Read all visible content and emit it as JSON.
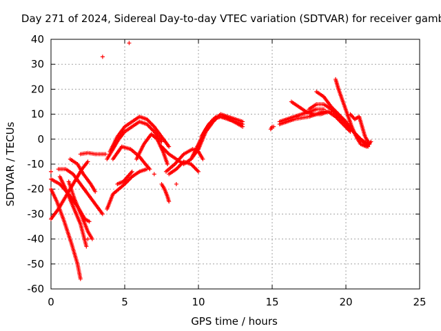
{
  "chart_data": {
    "type": "scatter",
    "title": "Day 271 of 2024, Sidereal Day-to-day VTEC variation (SDTVAR) for receiver gamb",
    "xlabel": "GPS time / hours",
    "ylabel": "SDTVAR / TECUs",
    "xlim": [
      0,
      25
    ],
    "ylim": [
      -60,
      40
    ],
    "xticks": [
      "0",
      "5",
      "10",
      "15",
      "20",
      "25"
    ],
    "yticks": [
      "-60",
      "-50",
      "-40",
      "-30",
      "-20",
      "-10",
      "0",
      "10",
      "20",
      "30",
      "40"
    ],
    "grid": true,
    "marker": "plus",
    "color": "#ff0000",
    "series": [
      {
        "name": "arc1",
        "x": [
          0.0,
          0.6,
          1.2,
          1.8,
          2.3,
          2.6
        ],
        "y": [
          -16,
          -18,
          -22,
          -27,
          -32,
          -33
        ]
      },
      {
        "name": "arc2",
        "x": [
          0.0,
          0.4,
          0.9,
          1.4,
          1.8,
          2.0
        ],
        "y": [
          -20,
          -25,
          -33,
          -42,
          -50,
          -56
        ]
      },
      {
        "name": "arc3",
        "x": [
          0.0,
          0.5,
          1.0,
          1.6,
          2.1,
          2.5
        ],
        "y": [
          -32,
          -28,
          -23,
          -17,
          -12,
          -9
        ]
      },
      {
        "name": "arc4",
        "x": [
          0.5,
          1.0,
          1.5,
          2.0,
          2.5,
          3.0,
          3.5
        ],
        "y": [
          -12,
          -12,
          -14,
          -18,
          -22,
          -26,
          -30
        ]
      },
      {
        "name": "arc5",
        "x": [
          0.6,
          1.0,
          1.5,
          2.0,
          2.4
        ],
        "y": [
          -15,
          -20,
          -27,
          -34,
          -43
        ]
      },
      {
        "name": "arc6",
        "x": [
          1.3,
          1.8,
          2.2,
          2.7,
          3.0
        ],
        "y": [
          -8,
          -10,
          -14,
          -18,
          -21
        ]
      },
      {
        "name": "arc7",
        "x": [
          1.2,
          1.6,
          2.1,
          2.5,
          2.8
        ],
        "y": [
          -17,
          -24,
          -31,
          -37,
          -40
        ]
      },
      {
        "name": "arc8",
        "x": [
          2.0,
          2.5,
          3.0,
          3.5,
          3.7
        ],
        "y": [
          -6,
          -5.5,
          -6,
          -6,
          -6
        ]
      },
      {
        "name": "arc9",
        "x": [
          3.8,
          4.2,
          4.6,
          5.0,
          5.5,
          6.0,
          6.5
        ],
        "y": [
          -28,
          -22,
          -20,
          -18,
          -15,
          -13,
          -12
        ]
      },
      {
        "name": "arc10",
        "x": [
          3.8,
          4.2,
          4.6,
          5.0,
          5.5,
          6.0,
          6.5,
          7.0,
          7.5
        ],
        "y": [
          -8,
          -4,
          0,
          3,
          5,
          7,
          6,
          3,
          -1
        ]
      },
      {
        "name": "arc11",
        "x": [
          4.0,
          4.5,
          5.0,
          5.5,
          6.0,
          6.5,
          7.0,
          7.5,
          8.0
        ],
        "y": [
          -5,
          1,
          5,
          7,
          9,
          8,
          5,
          1,
          -3
        ]
      },
      {
        "name": "arc12",
        "x": [
          4.2,
          4.8,
          5.4,
          6.0,
          6.4,
          6.7
        ],
        "y": [
          -8,
          -3,
          -4,
          -7,
          -10,
          -12
        ]
      },
      {
        "name": "arc13",
        "x": [
          4.5,
          4.9,
          5.2,
          5.5
        ],
        "y": [
          -18,
          -17,
          -15,
          -13
        ]
      },
      {
        "name": "arc14",
        "x": [
          5.8,
          6.3,
          6.8,
          7.2,
          7.6,
          7.9
        ],
        "y": [
          -8,
          -2,
          2,
          0,
          -5,
          -10
        ]
      },
      {
        "name": "arc15",
        "x": [
          7.5,
          7.7,
          7.9,
          8.0
        ],
        "y": [
          -18,
          -20,
          -23,
          -25
        ]
      },
      {
        "name": "arc16",
        "x": [
          7.5,
          8.0,
          8.5,
          9.0,
          9.5,
          10.0
        ],
        "y": [
          -3,
          -6,
          -8,
          -10,
          -8,
          -4
        ]
      },
      {
        "name": "arc17",
        "x": [
          7.8,
          8.4,
          9.0,
          9.6,
          10.0,
          10.3
        ],
        "y": [
          -13,
          -10,
          -6,
          -4,
          -5,
          -8
        ]
      },
      {
        "name": "arc18",
        "x": [
          8.0,
          8.5,
          9.0,
          9.5,
          10.0
        ],
        "y": [
          -14,
          -12,
          -9,
          -10,
          -13
        ]
      },
      {
        "name": "arc19",
        "x": [
          9.5,
          10.0,
          10.5,
          11.0,
          11.5,
          12.0,
          12.5,
          13.0
        ],
        "y": [
          -8,
          -2,
          4,
          8,
          9,
          8,
          7,
          6
        ]
      },
      {
        "name": "arc20",
        "x": [
          10.0,
          10.5,
          11.0,
          11.5,
          12.0,
          12.5,
          13.0
        ],
        "y": [
          -4,
          3,
          7,
          10,
          9,
          8,
          7
        ]
      },
      {
        "name": "arc21",
        "x": [
          10.2,
          10.7,
          11.2,
          11.8,
          12.4,
          13.0
        ],
        "y": [
          1,
          6,
          9,
          9,
          7,
          5
        ]
      },
      {
        "name": "arc22",
        "x": [
          14.9,
          15.0,
          15.1
        ],
        "y": [
          4,
          5,
          5
        ]
      },
      {
        "name": "arc23",
        "x": [
          15.5,
          16.0,
          16.5,
          17.0,
          17.5,
          18.0,
          18.5,
          19.0
        ],
        "y": [
          6,
          7,
          8,
          8.5,
          9,
          10,
          11,
          11
        ]
      },
      {
        "name": "arc24",
        "x": [
          15.5,
          16.0,
          16.5,
          17.0,
          17.5,
          18.0,
          18.5
        ],
        "y": [
          7,
          8,
          9,
          10,
          11,
          12,
          12
        ]
      },
      {
        "name": "arc25",
        "x": [
          16.3,
          16.8,
          17.3,
          17.8,
          18.3,
          18.8,
          19.3,
          19.8,
          20.3
        ],
        "y": [
          15,
          13,
          11,
          10,
          10,
          11,
          9,
          6,
          3
        ]
      },
      {
        "name": "arc26",
        "x": [
          17.5,
          18.0,
          18.5,
          19.0,
          19.5,
          20.0,
          20.5,
          21.0,
          21.5
        ],
        "y": [
          12,
          14,
          14,
          12,
          9,
          6,
          3,
          0,
          -2
        ]
      },
      {
        "name": "arc27",
        "x": [
          18.0,
          18.5,
          19.0,
          19.5,
          20.0,
          20.5,
          21.0,
          21.5
        ],
        "y": [
          19,
          17,
          13,
          10,
          7,
          3,
          0,
          -3
        ]
      },
      {
        "name": "arc28",
        "x": [
          19.3,
          19.5,
          19.8,
          20.1,
          20.4,
          20.7,
          21.0,
          21.4,
          21.7
        ],
        "y": [
          24,
          20,
          15,
          10,
          5,
          1,
          -2,
          -3,
          -1
        ]
      },
      {
        "name": "arc29",
        "x": [
          20.3,
          20.6,
          20.9,
          21.1,
          21.3,
          21.6
        ],
        "y": [
          10,
          8,
          9,
          5,
          1,
          -2
        ]
      },
      {
        "name": "outliers",
        "x": [
          3.5,
          5.3,
          0.0,
          2.5,
          8.5,
          7.0
        ],
        "y": [
          33,
          38.5,
          -13,
          -40,
          -18,
          -14
        ]
      }
    ]
  }
}
